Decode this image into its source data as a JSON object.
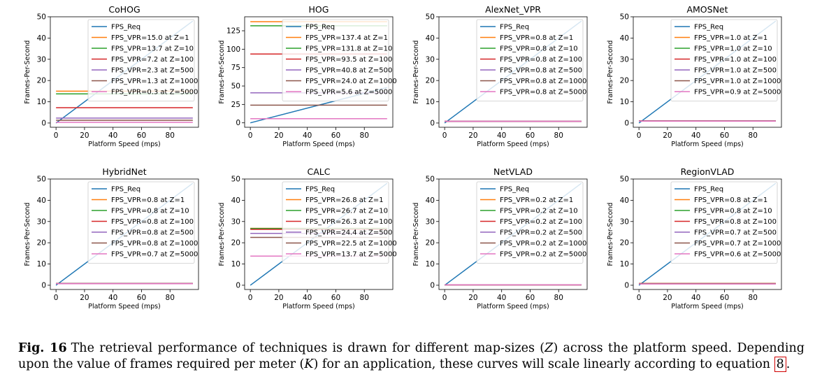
{
  "chart_data": [
    {
      "type": "line",
      "title": "CoHOG",
      "xlabel": "Platform Speed (mps)",
      "ylabel": "Frames-Per-Second",
      "xlim": [
        -4,
        100
      ],
      "ylim": [
        -2,
        50
      ],
      "xticks": [
        0,
        20,
        40,
        60,
        80
      ],
      "yticks": [
        0,
        10,
        20,
        30,
        40,
        50
      ],
      "legend": "top-right",
      "grid": false,
      "series": [
        {
          "name": "FPS_Req",
          "x": [
            0,
            96
          ],
          "y": [
            0,
            48
          ],
          "color": "#1f77b4"
        },
        {
          "name": "FPS_VPR=15.0 at Z=1",
          "x": [
            0,
            96
          ],
          "y": [
            15.0,
            15.0
          ],
          "color": "#ff7f0e"
        },
        {
          "name": "FPS_VPR=13.7 at Z=10",
          "x": [
            0,
            96
          ],
          "y": [
            13.7,
            13.7
          ],
          "color": "#2ca02c"
        },
        {
          "name": "FPS_VPR=7.2 at Z=100",
          "x": [
            0,
            96
          ],
          "y": [
            7.2,
            7.2
          ],
          "color": "#d62728"
        },
        {
          "name": "FPS_VPR=2.3 at Z=500",
          "x": [
            0,
            96
          ],
          "y": [
            2.3,
            2.3
          ],
          "color": "#9467bd"
        },
        {
          "name": "FPS_VPR=1.3 at Z=1000",
          "x": [
            0,
            96
          ],
          "y": [
            1.3,
            1.3
          ],
          "color": "#8c564b"
        },
        {
          "name": "FPS_VPR=0.3 at Z=5000",
          "x": [
            0,
            96
          ],
          "y": [
            0.3,
            0.3
          ],
          "color": "#e377c2"
        }
      ]
    },
    {
      "type": "line",
      "title": "HOG",
      "xlabel": "Platform Speed (mps)",
      "ylabel": "Frames-Per-Second",
      "xlim": [
        -4,
        100
      ],
      "ylim": [
        -6,
        144
      ],
      "xticks": [
        0,
        20,
        40,
        60,
        80
      ],
      "yticks": [
        0,
        25,
        50,
        75,
        100,
        125
      ],
      "legend": "top-right",
      "grid": false,
      "series": [
        {
          "name": "FPS_Req",
          "x": [
            0,
            96
          ],
          "y": [
            0,
            48
          ],
          "color": "#1f77b4"
        },
        {
          "name": "FPS_VPR=137.4 at Z=1",
          "x": [
            0,
            96
          ],
          "y": [
            137.4,
            137.4
          ],
          "color": "#ff7f0e"
        },
        {
          "name": "FPS_VPR=131.8 at Z=10",
          "x": [
            0,
            96
          ],
          "y": [
            131.8,
            131.8
          ],
          "color": "#2ca02c"
        },
        {
          "name": "FPS_VPR=93.5 at Z=100",
          "x": [
            0,
            96
          ],
          "y": [
            93.5,
            93.5
          ],
          "color": "#d62728"
        },
        {
          "name": "FPS_VPR=40.8 at Z=500",
          "x": [
            0,
            96
          ],
          "y": [
            40.8,
            40.8
          ],
          "color": "#9467bd"
        },
        {
          "name": "FPS_VPR=24.0 at Z=1000",
          "x": [
            0,
            96
          ],
          "y": [
            24.0,
            24.0
          ],
          "color": "#8c564b"
        },
        {
          "name": "FPS_VPR=5.6 at Z=5000",
          "x": [
            0,
            96
          ],
          "y": [
            5.6,
            5.6
          ],
          "color": "#e377c2"
        }
      ]
    },
    {
      "type": "line",
      "title": "AlexNet_VPR",
      "xlabel": "Platform Speed (mps)",
      "ylabel": "Frames-Per-Second",
      "xlim": [
        -4,
        100
      ],
      "ylim": [
        -2,
        50
      ],
      "xticks": [
        0,
        20,
        40,
        60,
        80
      ],
      "yticks": [
        0,
        10,
        20,
        30,
        40,
        50
      ],
      "legend": "top-right",
      "grid": false,
      "series": [
        {
          "name": "FPS_Req",
          "x": [
            0,
            96
          ],
          "y": [
            0,
            48
          ],
          "color": "#1f77b4"
        },
        {
          "name": "FPS_VPR=0.8 at Z=1",
          "x": [
            0,
            96
          ],
          "y": [
            0.8,
            0.8
          ],
          "color": "#ff7f0e"
        },
        {
          "name": "FPS_VPR=0.8 at Z=10",
          "x": [
            0,
            96
          ],
          "y": [
            0.8,
            0.8
          ],
          "color": "#2ca02c"
        },
        {
          "name": "FPS_VPR=0.8 at Z=100",
          "x": [
            0,
            96
          ],
          "y": [
            0.8,
            0.8
          ],
          "color": "#d62728"
        },
        {
          "name": "FPS_VPR=0.8 at Z=500",
          "x": [
            0,
            96
          ],
          "y": [
            0.8,
            0.8
          ],
          "color": "#9467bd"
        },
        {
          "name": "FPS_VPR=0.8 at Z=1000",
          "x": [
            0,
            96
          ],
          "y": [
            0.8,
            0.8
          ],
          "color": "#8c564b"
        },
        {
          "name": "FPS_VPR=0.8 at Z=5000",
          "x": [
            0,
            96
          ],
          "y": [
            0.8,
            0.8
          ],
          "color": "#e377c2"
        }
      ]
    },
    {
      "type": "line",
      "title": "AMOSNet",
      "xlabel": "Platform Speed (mps)",
      "ylabel": "Frames-Per-Second",
      "xlim": [
        -4,
        100
      ],
      "ylim": [
        -2,
        50
      ],
      "xticks": [
        0,
        20,
        40,
        60,
        80
      ],
      "yticks": [
        0,
        10,
        20,
        30,
        40,
        50
      ],
      "legend": "top-right",
      "grid": false,
      "series": [
        {
          "name": "FPS_Req",
          "x": [
            0,
            96
          ],
          "y": [
            0,
            48
          ],
          "color": "#1f77b4"
        },
        {
          "name": "FPS_VPR=1.0 at Z=1",
          "x": [
            0,
            96
          ],
          "y": [
            1.0,
            1.0
          ],
          "color": "#ff7f0e"
        },
        {
          "name": "FPS_VPR=1.0 at Z=10",
          "x": [
            0,
            96
          ],
          "y": [
            1.0,
            1.0
          ],
          "color": "#2ca02c"
        },
        {
          "name": "FPS_VPR=1.0 at Z=100",
          "x": [
            0,
            96
          ],
          "y": [
            1.0,
            1.0
          ],
          "color": "#d62728"
        },
        {
          "name": "FPS_VPR=1.0 at Z=500",
          "x": [
            0,
            96
          ],
          "y": [
            1.0,
            1.0
          ],
          "color": "#9467bd"
        },
        {
          "name": "FPS_VPR=1.0 at Z=1000",
          "x": [
            0,
            96
          ],
          "y": [
            1.0,
            1.0
          ],
          "color": "#8c564b"
        },
        {
          "name": "FPS_VPR=0.9 at Z=5000",
          "x": [
            0,
            96
          ],
          "y": [
            0.9,
            0.9
          ],
          "color": "#e377c2"
        }
      ]
    },
    {
      "type": "line",
      "title": "HybridNet",
      "xlabel": "Platform Speed (mps)",
      "ylabel": "Frames-Per-Second",
      "xlim": [
        -4,
        100
      ],
      "ylim": [
        -2,
        50
      ],
      "xticks": [
        0,
        20,
        40,
        60,
        80
      ],
      "yticks": [
        0,
        10,
        20,
        30,
        40,
        50
      ],
      "legend": "top-right",
      "grid": false,
      "series": [
        {
          "name": "FPS_Req",
          "x": [
            0,
            96
          ],
          "y": [
            0,
            48
          ],
          "color": "#1f77b4"
        },
        {
          "name": "FPS_VPR=0.8 at Z=1",
          "x": [
            0,
            96
          ],
          "y": [
            0.8,
            0.8
          ],
          "color": "#ff7f0e"
        },
        {
          "name": "FPS_VPR=0.8 at Z=10",
          "x": [
            0,
            96
          ],
          "y": [
            0.8,
            0.8
          ],
          "color": "#2ca02c"
        },
        {
          "name": "FPS_VPR=0.8 at Z=100",
          "x": [
            0,
            96
          ],
          "y": [
            0.8,
            0.8
          ],
          "color": "#d62728"
        },
        {
          "name": "FPS_VPR=0.8 at Z=500",
          "x": [
            0,
            96
          ],
          "y": [
            0.8,
            0.8
          ],
          "color": "#9467bd"
        },
        {
          "name": "FPS_VPR=0.8 at Z=1000",
          "x": [
            0,
            96
          ],
          "y": [
            0.8,
            0.8
          ],
          "color": "#8c564b"
        },
        {
          "name": "FPS_VPR=0.7 at Z=5000",
          "x": [
            0,
            96
          ],
          "y": [
            0.7,
            0.7
          ],
          "color": "#e377c2"
        }
      ]
    },
    {
      "type": "line",
      "title": "CALC",
      "xlabel": "Platform Speed (mps)",
      "ylabel": "Frames-Per-Second",
      "xlim": [
        -4,
        100
      ],
      "ylim": [
        -2,
        50
      ],
      "xticks": [
        0,
        20,
        40,
        60,
        80
      ],
      "yticks": [
        0,
        10,
        20,
        30,
        40,
        50
      ],
      "legend": "top-right",
      "grid": false,
      "series": [
        {
          "name": "FPS_Req",
          "x": [
            0,
            96
          ],
          "y": [
            0,
            48
          ],
          "color": "#1f77b4"
        },
        {
          "name": "FPS_VPR=26.8 at Z=1",
          "x": [
            0,
            96
          ],
          "y": [
            26.8,
            26.8
          ],
          "color": "#ff7f0e"
        },
        {
          "name": "FPS_VPR=26.7 at Z=10",
          "x": [
            0,
            96
          ],
          "y": [
            26.7,
            26.7
          ],
          "color": "#2ca02c"
        },
        {
          "name": "FPS_VPR=26.3 at Z=100",
          "x": [
            0,
            96
          ],
          "y": [
            26.3,
            26.3
          ],
          "color": "#d62728"
        },
        {
          "name": "FPS_VPR=24.4 at Z=500",
          "x": [
            0,
            96
          ],
          "y": [
            24.4,
            24.4
          ],
          "color": "#9467bd"
        },
        {
          "name": "FPS_VPR=22.5 at Z=1000",
          "x": [
            0,
            96
          ],
          "y": [
            22.5,
            22.5
          ],
          "color": "#8c564b"
        },
        {
          "name": "FPS_VPR=13.7 at Z=5000",
          "x": [
            0,
            96
          ],
          "y": [
            13.7,
            13.7
          ],
          "color": "#e377c2"
        }
      ]
    },
    {
      "type": "line",
      "title": "NetVLAD",
      "xlabel": "Platform Speed (mps)",
      "ylabel": "Frames-Per-Second",
      "xlim": [
        -4,
        100
      ],
      "ylim": [
        -2,
        50
      ],
      "xticks": [
        0,
        20,
        40,
        60,
        80
      ],
      "yticks": [
        0,
        10,
        20,
        30,
        40,
        50
      ],
      "legend": "top-right",
      "grid": false,
      "series": [
        {
          "name": "FPS_Req",
          "x": [
            0,
            96
          ],
          "y": [
            0,
            48
          ],
          "color": "#1f77b4"
        },
        {
          "name": "FPS_VPR=0.2 at Z=1",
          "x": [
            0,
            96
          ],
          "y": [
            0.2,
            0.2
          ],
          "color": "#ff7f0e"
        },
        {
          "name": "FPS_VPR=0.2 at Z=10",
          "x": [
            0,
            96
          ],
          "y": [
            0.2,
            0.2
          ],
          "color": "#2ca02c"
        },
        {
          "name": "FPS_VPR=0.2 at Z=100",
          "x": [
            0,
            96
          ],
          "y": [
            0.2,
            0.2
          ],
          "color": "#d62728"
        },
        {
          "name": "FPS_VPR=0.2 at Z=500",
          "x": [
            0,
            96
          ],
          "y": [
            0.2,
            0.2
          ],
          "color": "#9467bd"
        },
        {
          "name": "FPS_VPR=0.2 at Z=1000",
          "x": [
            0,
            96
          ],
          "y": [
            0.2,
            0.2
          ],
          "color": "#8c564b"
        },
        {
          "name": "FPS_VPR=0.2 at Z=5000",
          "x": [
            0,
            96
          ],
          "y": [
            0.2,
            0.2
          ],
          "color": "#e377c2"
        }
      ]
    },
    {
      "type": "line",
      "title": "RegionVLAD",
      "xlabel": "Platform Speed (mps)",
      "ylabel": "Frames-Per-Second",
      "xlim": [
        -4,
        100
      ],
      "ylim": [
        -2,
        50
      ],
      "xticks": [
        0,
        20,
        40,
        60,
        80
      ],
      "yticks": [
        0,
        10,
        20,
        30,
        40,
        50
      ],
      "legend": "top-right",
      "grid": false,
      "series": [
        {
          "name": "FPS_Req",
          "x": [
            0,
            96
          ],
          "y": [
            0,
            48
          ],
          "color": "#1f77b4"
        },
        {
          "name": "FPS_VPR=0.8 at Z=1",
          "x": [
            0,
            96
          ],
          "y": [
            0.8,
            0.8
          ],
          "color": "#ff7f0e"
        },
        {
          "name": "FPS_VPR=0.8 at Z=10",
          "x": [
            0,
            96
          ],
          "y": [
            0.8,
            0.8
          ],
          "color": "#2ca02c"
        },
        {
          "name": "FPS_VPR=0.8 at Z=100",
          "x": [
            0,
            96
          ],
          "y": [
            0.8,
            0.8
          ],
          "color": "#d62728"
        },
        {
          "name": "FPS_VPR=0.7 at Z=500",
          "x": [
            0,
            96
          ],
          "y": [
            0.7,
            0.7
          ],
          "color": "#9467bd"
        },
        {
          "name": "FPS_VPR=0.7 at Z=1000",
          "x": [
            0,
            96
          ],
          "y": [
            0.7,
            0.7
          ],
          "color": "#8c564b"
        },
        {
          "name": "FPS_VPR=0.6 at Z=5000",
          "x": [
            0,
            96
          ],
          "y": [
            0.6,
            0.6
          ],
          "color": "#e377c2"
        }
      ]
    }
  ],
  "caption": {
    "label": "Fig. 16",
    "text_1": "The retrieval performance of techniques is drawn for different map-sizes (",
    "var_z": "Z",
    "text_2": ") across the platform speed. Depending upon the value of frames required per meter (",
    "var_k": "K",
    "text_3": ") for an application, these curves will scale linearly according to equation ",
    "ref": "8",
    "text_4": "."
  }
}
